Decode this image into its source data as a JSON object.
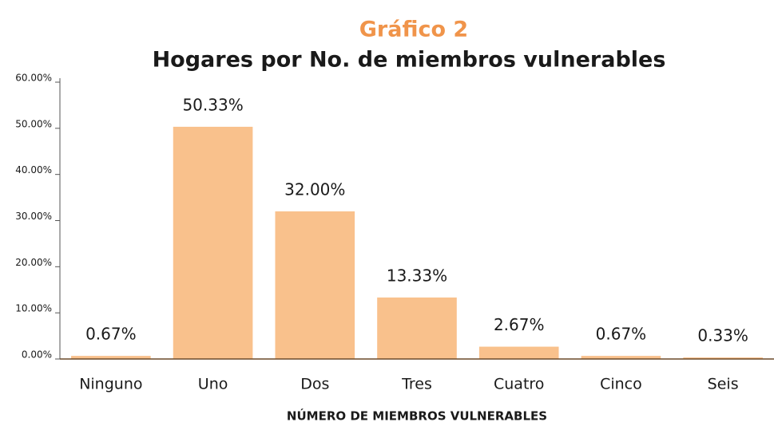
{
  "chart_data": {
    "type": "bar",
    "title": "Gráfico 2",
    "subtitle": "Hogares por No. de miembros vulnerables",
    "x_label": "NÚMERO DE MIEMBROS VULNERABLES",
    "categories": [
      "Ninguno",
      "Uno",
      "Dos",
      "Tres",
      "Cuatro",
      "Cinco",
      "Seis"
    ],
    "values": [
      0.67,
      50.33,
      32.0,
      13.33,
      2.67,
      0.67,
      0.33
    ],
    "value_labels": [
      "0.67%",
      "50.33%",
      "32.00%",
      "13.33%",
      "2.67%",
      "0.67%",
      "0.33%"
    ],
    "color": "#f9c18c",
    "ylim": [
      0,
      60
    ],
    "yticks": [
      {
        "value": 0,
        "label": "0.00%"
      },
      {
        "value": 10,
        "label": "10.00%"
      },
      {
        "value": 20,
        "label": "20.00%"
      },
      {
        "value": 30,
        "label": "30.00%"
      },
      {
        "value": 40,
        "label": "40.00%"
      },
      {
        "value": 50,
        "label": "50.00%"
      },
      {
        "value": 60,
        "label": "60.00%"
      }
    ],
    "grid": false
  }
}
